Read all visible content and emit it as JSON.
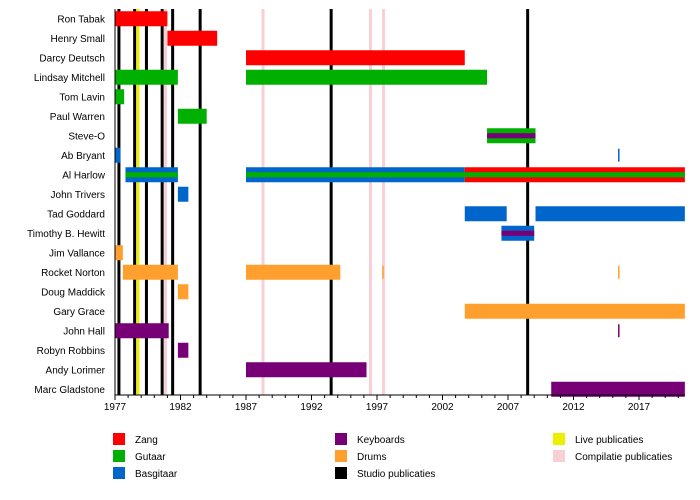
{
  "chart_data": {
    "type": "timeline",
    "title": "",
    "xlim": [
      1977,
      2020.5
    ],
    "x_ticks": [
      "1977",
      "1982",
      "1987",
      "1992",
      "1997",
      "2002",
      "2007",
      "2012",
      "2017"
    ],
    "colors": {
      "Zang": "#ff0000",
      "Gutaar": "#00b000",
      "Basgitaar": "#0066cc",
      "Keyboards": "#770077",
      "Drums": "#ff9f2d",
      "Studio publicaties": "#000000",
      "Live publicaties": "#eeee00",
      "Compilatie publicaties": "#f9cfd6"
    },
    "members": [
      {
        "name": "Ron Tabak",
        "periods": [
          {
            "from": 1977,
            "to": 1981,
            "roles": [
              "Zang"
            ]
          }
        ]
      },
      {
        "name": "Henry Small",
        "periods": [
          {
            "from": 1981,
            "to": 1984.8,
            "roles": [
              "Zang"
            ]
          }
        ]
      },
      {
        "name": "Darcy Deutsch",
        "periods": [
          {
            "from": 1987,
            "to": 2003.7,
            "roles": [
              "Zang"
            ]
          }
        ]
      },
      {
        "name": "Lindsay Mitchell",
        "periods": [
          {
            "from": 1977,
            "to": 1981.8,
            "roles": [
              "Gutaar"
            ]
          },
          {
            "from": 1987,
            "to": 2005.4,
            "roles": [
              "Gutaar"
            ]
          }
        ]
      },
      {
        "name": "Tom Lavin",
        "periods": [
          {
            "from": 1977,
            "to": 1977.7,
            "roles": [
              "Gutaar"
            ]
          }
        ]
      },
      {
        "name": "Paul Warren",
        "periods": [
          {
            "from": 1981.8,
            "to": 1984,
            "roles": [
              "Gutaar"
            ]
          }
        ]
      },
      {
        "name": "Steve-O",
        "periods": [
          {
            "from": 2005.4,
            "to": 2009.1,
            "roles": [
              "Gutaar",
              "Keyboards"
            ]
          }
        ]
      },
      {
        "name": "Ab Bryant",
        "periods": [
          {
            "from": 1977,
            "to": 1977.4,
            "roles": [
              "Basgitaar"
            ]
          },
          {
            "from": 2015.4,
            "to": 2015.5,
            "roles": [
              "Basgitaar"
            ]
          }
        ]
      },
      {
        "name": "Al Harlow",
        "periods": [
          {
            "from": 1977.8,
            "to": 1981.8,
            "roles": [
              "Basgitaar",
              "Gutaar"
            ]
          },
          {
            "from": 1987,
            "to": 2003.7,
            "roles": [
              "Basgitaar",
              "Gutaar"
            ]
          },
          {
            "from": 2003.7,
            "to": 2020.5,
            "roles": [
              "Zang",
              "Gutaar"
            ]
          }
        ]
      },
      {
        "name": "John Trivers",
        "periods": [
          {
            "from": 1981.8,
            "to": 1982.6,
            "roles": [
              "Basgitaar"
            ]
          }
        ]
      },
      {
        "name": "Tad Goddard",
        "periods": [
          {
            "from": 2003.7,
            "to": 2006.9,
            "roles": [
              "Basgitaar"
            ]
          },
          {
            "from": 2009.1,
            "to": 2020.5,
            "roles": [
              "Basgitaar"
            ]
          }
        ]
      },
      {
        "name": "Timothy B. Hewitt",
        "periods": [
          {
            "from": 2006.5,
            "to": 2009,
            "roles": [
              "Basgitaar",
              "Keyboards"
            ]
          }
        ]
      },
      {
        "name": "Jim Vallance",
        "periods": [
          {
            "from": 1977,
            "to": 1977.6,
            "roles": [
              "Drums"
            ]
          }
        ]
      },
      {
        "name": "Rocket Norton",
        "periods": [
          {
            "from": 1977.6,
            "to": 1981.8,
            "roles": [
              "Drums"
            ]
          },
          {
            "from": 1987,
            "to": 1994.2,
            "roles": [
              "Drums"
            ]
          },
          {
            "from": 1997.4,
            "to": 1997.5,
            "roles": [
              "Drums"
            ]
          },
          {
            "from": 2015.4,
            "to": 2015.5,
            "roles": [
              "Drums"
            ]
          }
        ]
      },
      {
        "name": "Doug Maddick",
        "periods": [
          {
            "from": 1981.8,
            "to": 1982.6,
            "roles": [
              "Drums"
            ]
          }
        ]
      },
      {
        "name": "Gary Grace",
        "periods": [
          {
            "from": 2003.7,
            "to": 2020.5,
            "roles": [
              "Drums"
            ]
          }
        ]
      },
      {
        "name": "John Hall",
        "periods": [
          {
            "from": 1977,
            "to": 1981.1,
            "roles": [
              "Keyboards"
            ]
          },
          {
            "from": 2015.4,
            "to": 2015.5,
            "roles": [
              "Keyboards"
            ]
          }
        ]
      },
      {
        "name": "Robyn Robbins",
        "periods": [
          {
            "from": 1981.8,
            "to": 1982.6,
            "roles": [
              "Keyboards"
            ]
          }
        ]
      },
      {
        "name": "Andy Lorimer",
        "periods": [
          {
            "from": 1987,
            "to": 1996.2,
            "roles": [
              "Keyboards"
            ]
          }
        ]
      },
      {
        "name": "Marc Gladstone",
        "periods": [
          {
            "from": 2010.3,
            "to": 2020.5,
            "roles": [
              "Keyboards"
            ]
          }
        ]
      }
    ],
    "releases": [
      {
        "year": 1977.3,
        "type": "Studio publicaties"
      },
      {
        "year": 1978.5,
        "type": "Studio publicaties"
      },
      {
        "year": 1978.75,
        "type": "Live publicaties"
      },
      {
        "year": 1979.4,
        "type": "Studio publicaties"
      },
      {
        "year": 1980.6,
        "type": "Studio publicaties"
      },
      {
        "year": 1980.85,
        "type": "Compilatie publicaties"
      },
      {
        "year": 1981.4,
        "type": "Studio publicaties"
      },
      {
        "year": 1983.5,
        "type": "Studio publicaties"
      },
      {
        "year": 1988.3,
        "type": "Compilatie publicaties"
      },
      {
        "year": 1993.5,
        "type": "Studio publicaties"
      },
      {
        "year": 1996.5,
        "type": "Compilatie publicaties"
      },
      {
        "year": 1997.5,
        "type": "Compilatie publicaties"
      },
      {
        "year": 2008.5,
        "type": "Studio publicaties"
      }
    ],
    "legend": [
      [
        "Zang",
        "Gutaar",
        "Basgitaar"
      ],
      [
        "Keyboards",
        "Drums",
        "Studio publicaties"
      ],
      [
        "Live publicaties",
        "Compilatie publicaties"
      ]
    ],
    "legend_position": "bottom"
  }
}
